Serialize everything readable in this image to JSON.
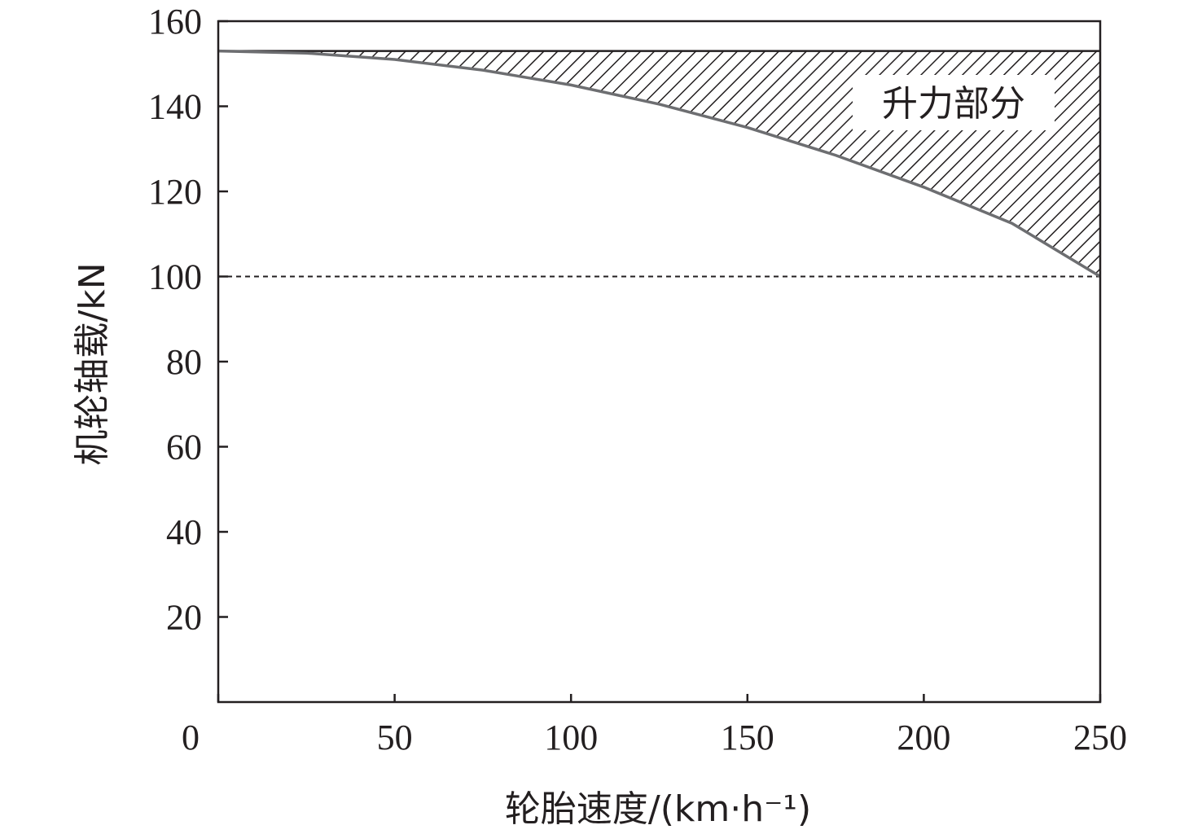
{
  "chart_data": {
    "type": "area",
    "title": "",
    "xlabel": "轮胎速度/(km·h⁻¹)",
    "ylabel": "机轮轴载/kN",
    "xlim": [
      0,
      250
    ],
    "ylim": [
      0,
      160
    ],
    "x_ticks": [
      0,
      50,
      100,
      150,
      200,
      250
    ],
    "y_ticks": [
      20,
      40,
      60,
      80,
      100,
      120,
      140,
      160
    ],
    "grid": false,
    "constant_load": 153,
    "reference_line": 100,
    "series": [
      {
        "x": [
          0,
          25,
          50,
          75,
          100,
          125,
          150,
          175,
          200,
          225,
          250
        ],
        "values": [
          153,
          152.3,
          150.2,
          146.8,
          141.9,
          135.7,
          128.1,
          119.1,
          108.8,
          97.1,
          100
        ]
      }
    ],
    "curve": {
      "x": [
        0,
        25,
        50,
        75,
        100,
        125,
        150,
        175,
        200,
        225,
        250
      ],
      "values": [
        153,
        152.5,
        151,
        148.5,
        145,
        140.5,
        135,
        128.5,
        121,
        112.5,
        100
      ]
    },
    "annotation": "升力部分",
    "colors": {
      "axis": "#231f20",
      "curve": "#6d6e71",
      "hatch": "#231f20"
    }
  }
}
